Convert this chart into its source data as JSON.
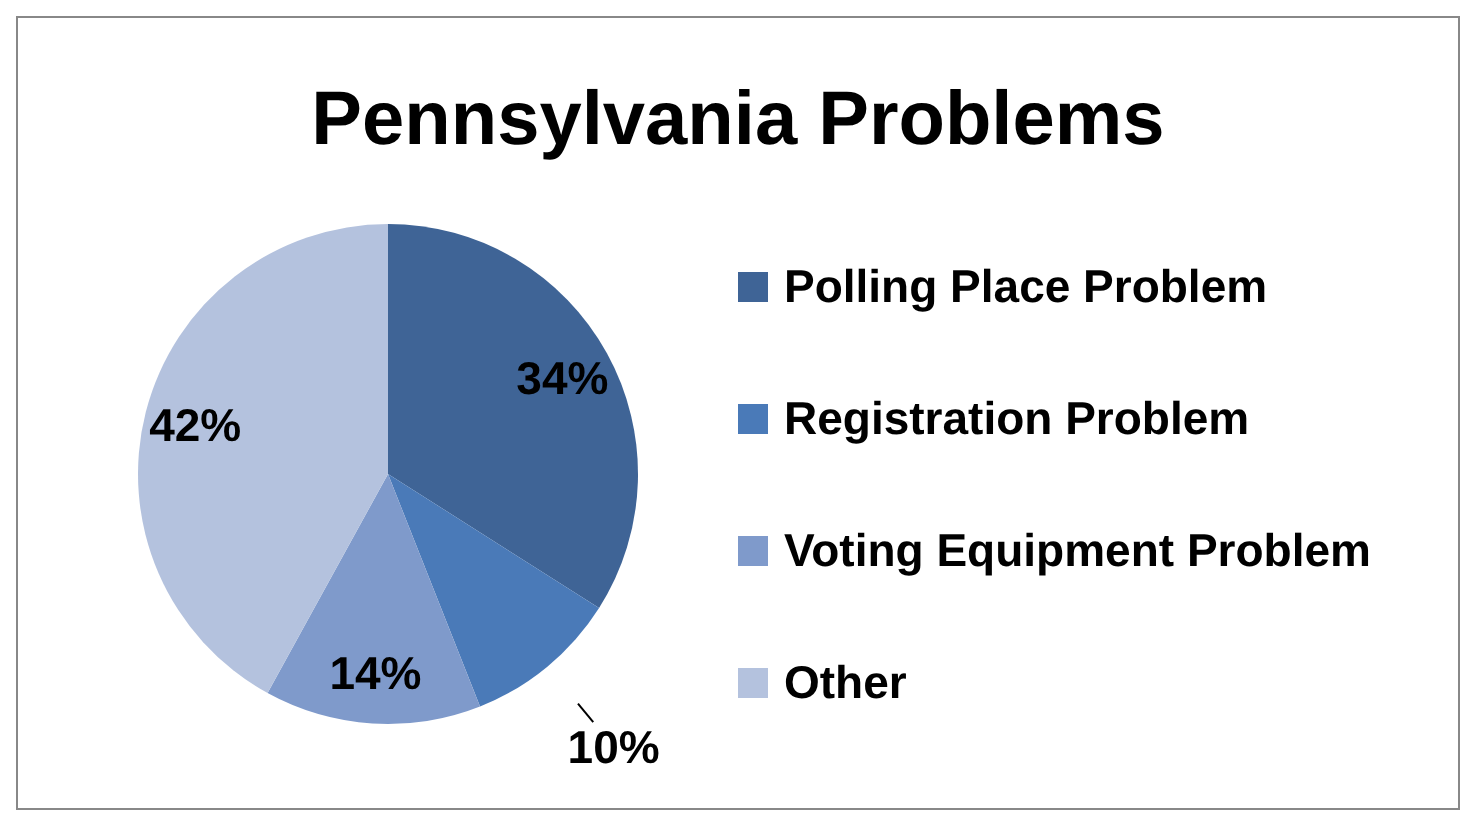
{
  "chart_data": {
    "type": "pie",
    "title": "Pennsylvania Problems",
    "categories": [
      "Polling Place Problem",
      "Registration Problem",
      "Voting Equipment Problem",
      "Other"
    ],
    "values": [
      34,
      10,
      14,
      42
    ],
    "colors": [
      "#3f6496",
      "#4a7ab8",
      "#7f9acb",
      "#b4c2de"
    ],
    "value_labels": [
      "34%",
      "10%",
      "14%",
      "42%"
    ],
    "legend": "right"
  }
}
